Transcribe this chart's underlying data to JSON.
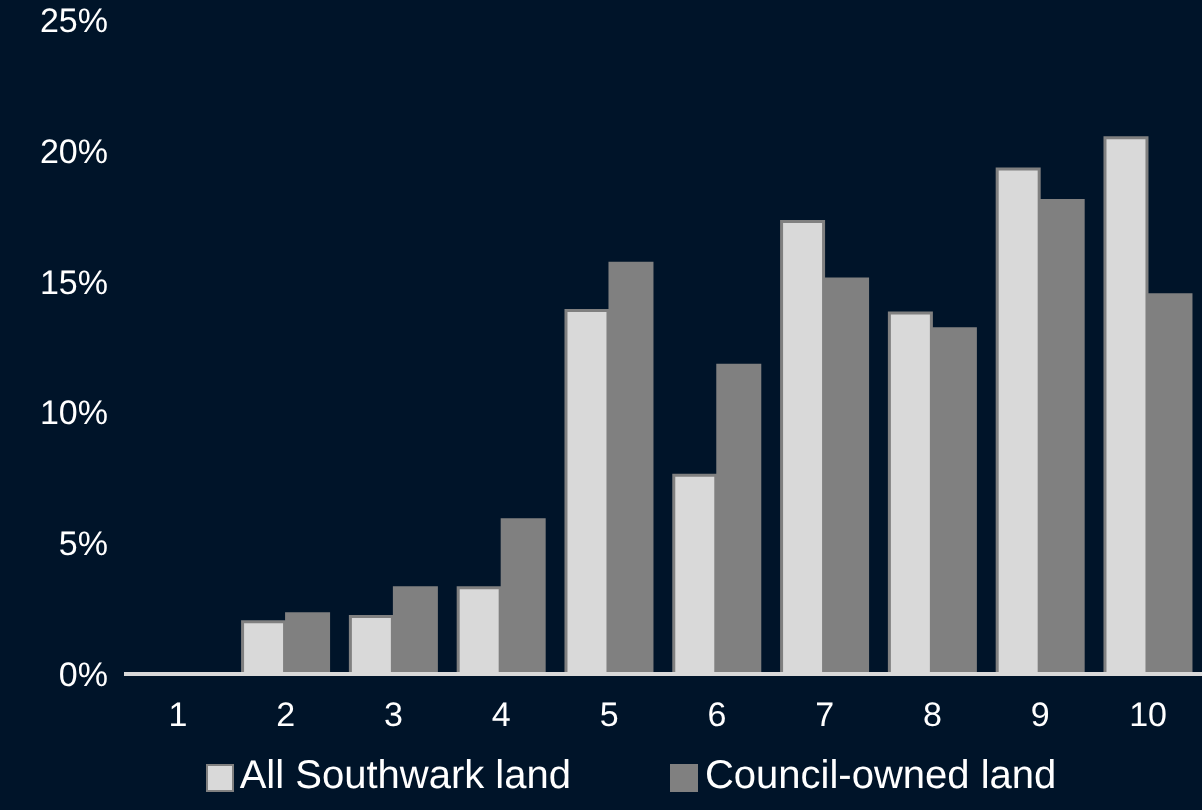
{
  "chart_data": {
    "type": "bar",
    "categories": [
      "1",
      "2",
      "3",
      "4",
      "5",
      "6",
      "7",
      "8",
      "9",
      "10"
    ],
    "series": [
      {
        "name": "All Southwark land",
        "color": "#d9d9d9",
        "values": [
          0,
          2.0,
          2.2,
          3.3,
          13.9,
          7.6,
          17.3,
          13.8,
          19.3,
          20.5
        ]
      },
      {
        "name": "Council-owned land",
        "color": "#808080",
        "values": [
          0,
          2.3,
          3.3,
          5.9,
          15.7,
          11.8,
          15.1,
          13.2,
          18.1,
          14.5
        ]
      }
    ],
    "ylim": [
      0,
      25
    ],
    "yticks": [
      {
        "value": 0,
        "label": "0%"
      },
      {
        "value": 5,
        "label": "5%"
      },
      {
        "value": 10,
        "label": "10%"
      },
      {
        "value": 15,
        "label": "15%"
      },
      {
        "value": 20,
        "label": "20%"
      },
      {
        "value": 25,
        "label": "25%"
      }
    ],
    "grid": false,
    "legend": "bottom"
  }
}
